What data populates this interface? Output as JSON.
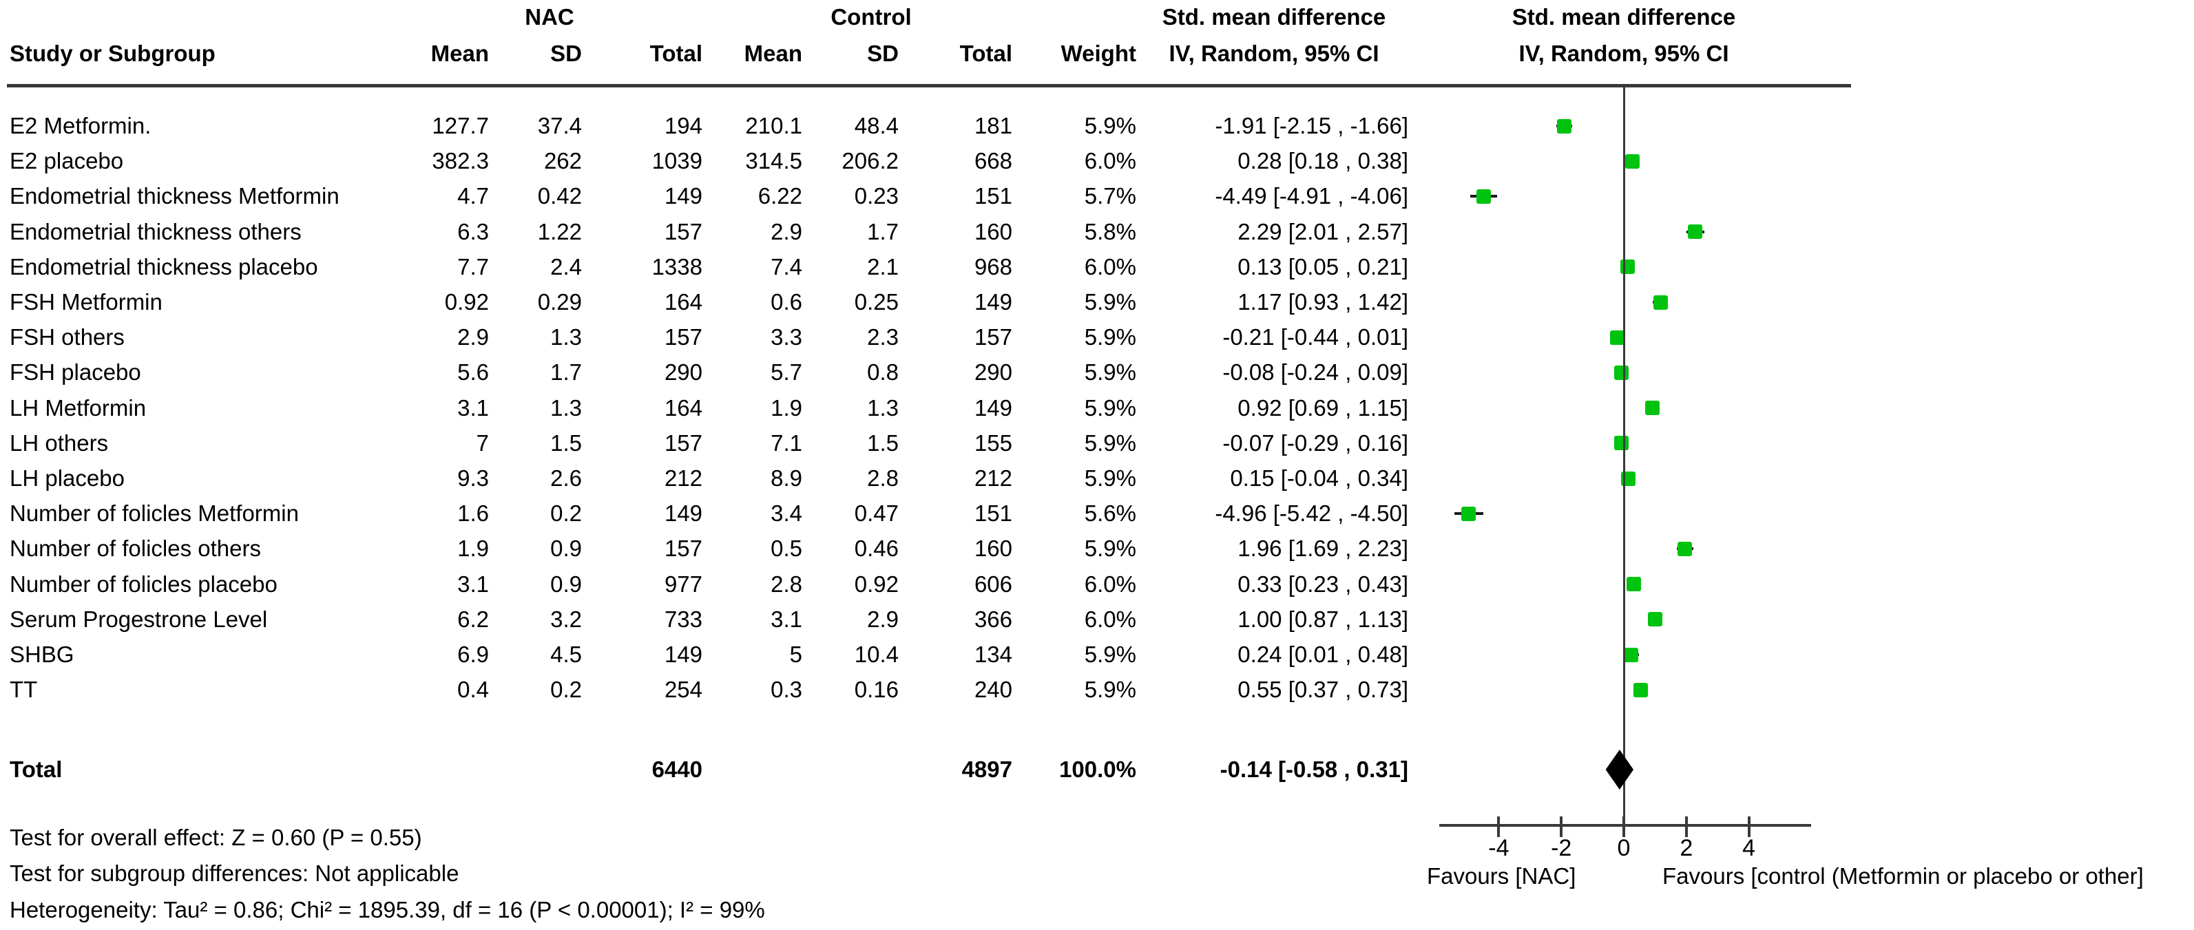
{
  "header": {
    "study_col": "Study or Subgroup",
    "group1": "NAC",
    "group2": "Control",
    "mean1": "Mean",
    "sd1": "SD",
    "total1": "Total",
    "mean2": "Mean",
    "sd2": "SD",
    "total2": "Total",
    "weight": "Weight",
    "effect_title": "Std. mean difference",
    "effect_subtitle": "IV, Random, 95% CI",
    "plot_title": "Std. mean difference",
    "plot_subtitle": "IV, Random, 95% CI"
  },
  "colors": {
    "marker_green": "#00c30f",
    "line_dark": "#3a3a3a",
    "ci_black": "#1b1b1b",
    "diamond_black": "#000000"
  },
  "chart_data": {
    "type": "forest",
    "effect_measure": "Std. mean difference (IV, Random, 95% CI)",
    "x_ticks": [
      -4,
      -2,
      0,
      2,
      4
    ],
    "xlim": [
      -5.9,
      6.0
    ],
    "zero_line_x": 0,
    "favours_left": "Favours [NAC]",
    "favours_right": "Favours [control (Metformin or placebo or other]",
    "studies": [
      {
        "label": "E2 Metformin.",
        "nac_mean": "127.7",
        "nac_sd": "37.4",
        "nac_total": "194",
        "ctl_mean": "210.1",
        "ctl_sd": "48.4",
        "ctl_total": "181",
        "weight": "5.9%",
        "ci_text": "-1.91 [-2.15 , -1.66]",
        "est": -1.91,
        "lo": -2.15,
        "hi": -1.66
      },
      {
        "label": "E2 placebo",
        "nac_mean": "382.3",
        "nac_sd": "262",
        "nac_total": "1039",
        "ctl_mean": "314.5",
        "ctl_sd": "206.2",
        "ctl_total": "668",
        "weight": "6.0%",
        "ci_text": "0.28 [0.18 , 0.38]",
        "est": 0.28,
        "lo": 0.18,
        "hi": 0.38
      },
      {
        "label": "Endometrial thickness Metformin",
        "nac_mean": "4.7",
        "nac_sd": "0.42",
        "nac_total": "149",
        "ctl_mean": "6.22",
        "ctl_sd": "0.23",
        "ctl_total": "151",
        "weight": "5.7%",
        "ci_text": "-4.49 [-4.91 , -4.06]",
        "est": -4.49,
        "lo": -4.91,
        "hi": -4.06
      },
      {
        "label": "Endometrial thickness others",
        "nac_mean": "6.3",
        "nac_sd": "1.22",
        "nac_total": "157",
        "ctl_mean": "2.9",
        "ctl_sd": "1.7",
        "ctl_total": "160",
        "weight": "5.8%",
        "ci_text": "2.29 [2.01 , 2.57]",
        "est": 2.29,
        "lo": 2.01,
        "hi": 2.57
      },
      {
        "label": "Endometrial thickness placebo",
        "nac_mean": "7.7",
        "nac_sd": "2.4",
        "nac_total": "1338",
        "ctl_mean": "7.4",
        "ctl_sd": "2.1",
        "ctl_total": "968",
        "weight": "6.0%",
        "ci_text": "0.13 [0.05 , 0.21]",
        "est": 0.13,
        "lo": 0.05,
        "hi": 0.21
      },
      {
        "label": "FSH Metformin",
        "nac_mean": "0.92",
        "nac_sd": "0.29",
        "nac_total": "164",
        "ctl_mean": "0.6",
        "ctl_sd": "0.25",
        "ctl_total": "149",
        "weight": "5.9%",
        "ci_text": "1.17 [0.93 , 1.42]",
        "est": 1.17,
        "lo": 0.93,
        "hi": 1.42
      },
      {
        "label": "FSH others",
        "nac_mean": "2.9",
        "nac_sd": "1.3",
        "nac_total": "157",
        "ctl_mean": "3.3",
        "ctl_sd": "2.3",
        "ctl_total": "157",
        "weight": "5.9%",
        "ci_text": "-0.21 [-0.44 , 0.01]",
        "est": -0.21,
        "lo": -0.44,
        "hi": 0.01
      },
      {
        "label": "FSH placebo",
        "nac_mean": "5.6",
        "nac_sd": "1.7",
        "nac_total": "290",
        "ctl_mean": "5.7",
        "ctl_sd": "0.8",
        "ctl_total": "290",
        "weight": "5.9%",
        "ci_text": "-0.08 [-0.24 , 0.09]",
        "est": -0.08,
        "lo": -0.24,
        "hi": 0.09
      },
      {
        "label": "LH Metformin",
        "nac_mean": "3.1",
        "nac_sd": "1.3",
        "nac_total": "164",
        "ctl_mean": "1.9",
        "ctl_sd": "1.3",
        "ctl_total": "149",
        "weight": "5.9%",
        "ci_text": "0.92 [0.69 , 1.15]",
        "est": 0.92,
        "lo": 0.69,
        "hi": 1.15
      },
      {
        "label": "LH others",
        "nac_mean": "7",
        "nac_sd": "1.5",
        "nac_total": "157",
        "ctl_mean": "7.1",
        "ctl_sd": "1.5",
        "ctl_total": "155",
        "weight": "5.9%",
        "ci_text": "-0.07 [-0.29 , 0.16]",
        "est": -0.07,
        "lo": -0.29,
        "hi": 0.16
      },
      {
        "label": "LH placebo",
        "nac_mean": "9.3",
        "nac_sd": "2.6",
        "nac_total": "212",
        "ctl_mean": "8.9",
        "ctl_sd": "2.8",
        "ctl_total": "212",
        "weight": "5.9%",
        "ci_text": "0.15 [-0.04 , 0.34]",
        "est": 0.15,
        "lo": -0.04,
        "hi": 0.34
      },
      {
        "label": "Number of folicles Metformin",
        "nac_mean": "1.6",
        "nac_sd": "0.2",
        "nac_total": "149",
        "ctl_mean": "3.4",
        "ctl_sd": "0.47",
        "ctl_total": "151",
        "weight": "5.6%",
        "ci_text": "-4.96 [-5.42 , -4.50]",
        "est": -4.96,
        "lo": -5.42,
        "hi": -4.5
      },
      {
        "label": "Number of folicles others",
        "nac_mean": "1.9",
        "nac_sd": "0.9",
        "nac_total": "157",
        "ctl_mean": "0.5",
        "ctl_sd": "0.46",
        "ctl_total": "160",
        "weight": "5.9%",
        "ci_text": "1.96 [1.69 , 2.23]",
        "est": 1.96,
        "lo": 1.69,
        "hi": 2.23
      },
      {
        "label": "Number of folicles placebo",
        "nac_mean": "3.1",
        "nac_sd": "0.9",
        "nac_total": "977",
        "ctl_mean": "2.8",
        "ctl_sd": "0.92",
        "ctl_total": "606",
        "weight": "6.0%",
        "ci_text": "0.33 [0.23 , 0.43]",
        "est": 0.33,
        "lo": 0.23,
        "hi": 0.43
      },
      {
        "label": "Serum Progestrone Level",
        "nac_mean": "6.2",
        "nac_sd": "3.2",
        "nac_total": "733",
        "ctl_mean": "3.1",
        "ctl_sd": "2.9",
        "ctl_total": "366",
        "weight": "6.0%",
        "ci_text": "1.00 [0.87 , 1.13]",
        "est": 1.0,
        "lo": 0.87,
        "hi": 1.13
      },
      {
        "label": "SHBG",
        "nac_mean": "6.9",
        "nac_sd": "4.5",
        "nac_total": "149",
        "ctl_mean": "5",
        "ctl_sd": "10.4",
        "ctl_total": "134",
        "weight": "5.9%",
        "ci_text": "0.24 [0.01 , 0.48]",
        "est": 0.24,
        "lo": 0.01,
        "hi": 0.48
      },
      {
        "label": "TT",
        "nac_mean": "0.4",
        "nac_sd": "0.2",
        "nac_total": "254",
        "ctl_mean": "0.3",
        "ctl_sd": "0.16",
        "ctl_total": "240",
        "weight": "5.9%",
        "ci_text": "0.55 [0.37 , 0.73]",
        "est": 0.55,
        "lo": 0.37,
        "hi": 0.73
      }
    ],
    "total": {
      "label": "Total",
      "nac_total": "6440",
      "ctl_total": "4897",
      "weight": "100.0%",
      "ci_text": "-0.14 [-0.58 , 0.31]",
      "est": -0.14,
      "lo": -0.58,
      "hi": 0.31
    }
  },
  "footer": {
    "line1": "Test for overall effect: Z = 0.60 (P = 0.55)",
    "line2": "Test for subgroup differences: Not applicable",
    "line3": "Heterogeneity: Tau² = 0.86; Chi² = 1895.39, df = 16 (P < 0.00001); I² = 99%"
  }
}
